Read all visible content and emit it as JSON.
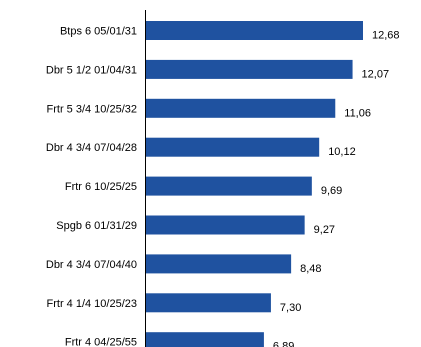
{
  "chart_data": {
    "type": "bar",
    "orientation": "horizontal",
    "title": "",
    "xlabel": "",
    "ylabel": "",
    "categories": [
      "Btps 6 05/01/31",
      "Dbr 5 1/2 01/04/31",
      "Frtr 5 3/4 10/25/32",
      "Dbr 4 3/4 07/04/28",
      "Frtr 6 10/25/25",
      "Spgb 6 01/31/29",
      "Dbr 4 3/4 07/04/40",
      "Frtr 4 1/4 10/25/23",
      "Frtr 4 04/25/55"
    ],
    "values": [
      12.68,
      12.07,
      11.06,
      10.12,
      9.69,
      9.27,
      8.48,
      7.3,
      6.89
    ],
    "value_labels": [
      "12,68",
      "12,07",
      "11,06",
      "10,12",
      "9,69",
      "9,27",
      "8,48",
      "7,30",
      "6,89"
    ],
    "xlim": [
      0,
      16
    ],
    "grid": false,
    "legend": "none",
    "bar_color": "#1F52A0"
  }
}
